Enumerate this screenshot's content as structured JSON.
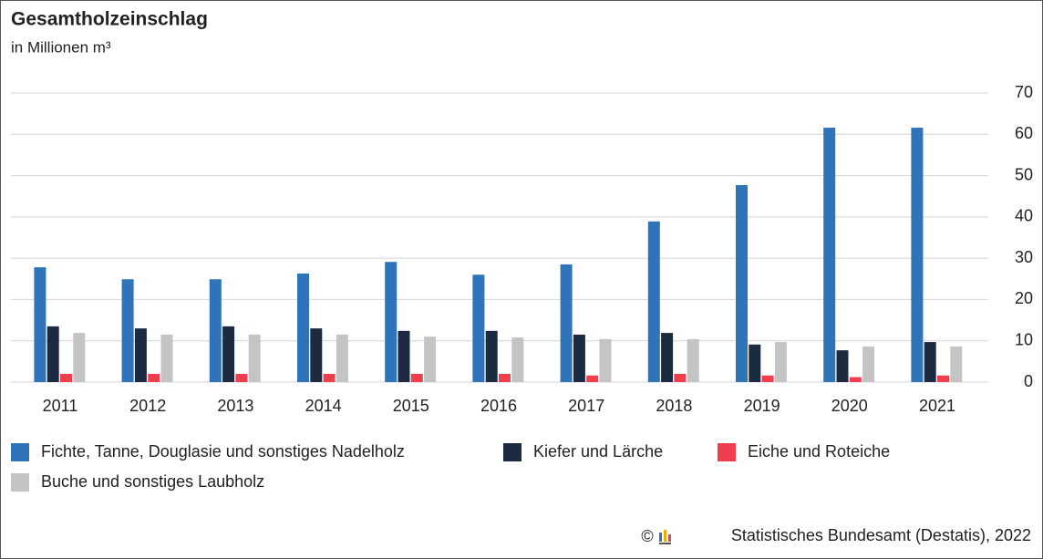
{
  "chart_data": {
    "type": "bar",
    "title": "Gesamtholzeinschlag",
    "subtitle": "in Millionen m³",
    "categories": [
      "2011",
      "2012",
      "2013",
      "2014",
      "2015",
      "2016",
      "2017",
      "2018",
      "2019",
      "2020",
      "2021"
    ],
    "series": [
      {
        "name": "Fichte, Tanne, Douglasie und sonstiges Nadelholz",
        "color": "#2f73b8",
        "values": [
          27.8,
          24.9,
          24.9,
          26.3,
          29.1,
          26.0,
          28.5,
          38.9,
          47.7,
          61.6,
          61.6
        ]
      },
      {
        "name": "Kiefer und Lärche",
        "color": "#1c2a42",
        "values": [
          13.5,
          13.0,
          13.5,
          13.0,
          12.4,
          12.4,
          11.5,
          11.9,
          9.1,
          7.7,
          9.7
        ]
      },
      {
        "name": "Eiche und Roteiche",
        "color": "#ef3f4f",
        "values": [
          2.0,
          2.0,
          2.0,
          2.0,
          2.0,
          2.0,
          1.6,
          2.0,
          1.6,
          1.2,
          1.6
        ]
      },
      {
        "name": "Buche und sonstiges Laubholz",
        "color": "#c4c4c4",
        "values": [
          11.9,
          11.5,
          11.5,
          11.5,
          11.0,
          10.8,
          10.4,
          10.4,
          9.7,
          8.6,
          8.6
        ]
      }
    ],
    "ylim": [
      0,
      70
    ],
    "yticks": [
      0,
      10,
      20,
      30,
      40,
      50,
      60,
      70
    ],
    "grid": true,
    "copyright_symbol": "©",
    "source": "Statistisches Bundesamt (Destatis), 2022"
  }
}
